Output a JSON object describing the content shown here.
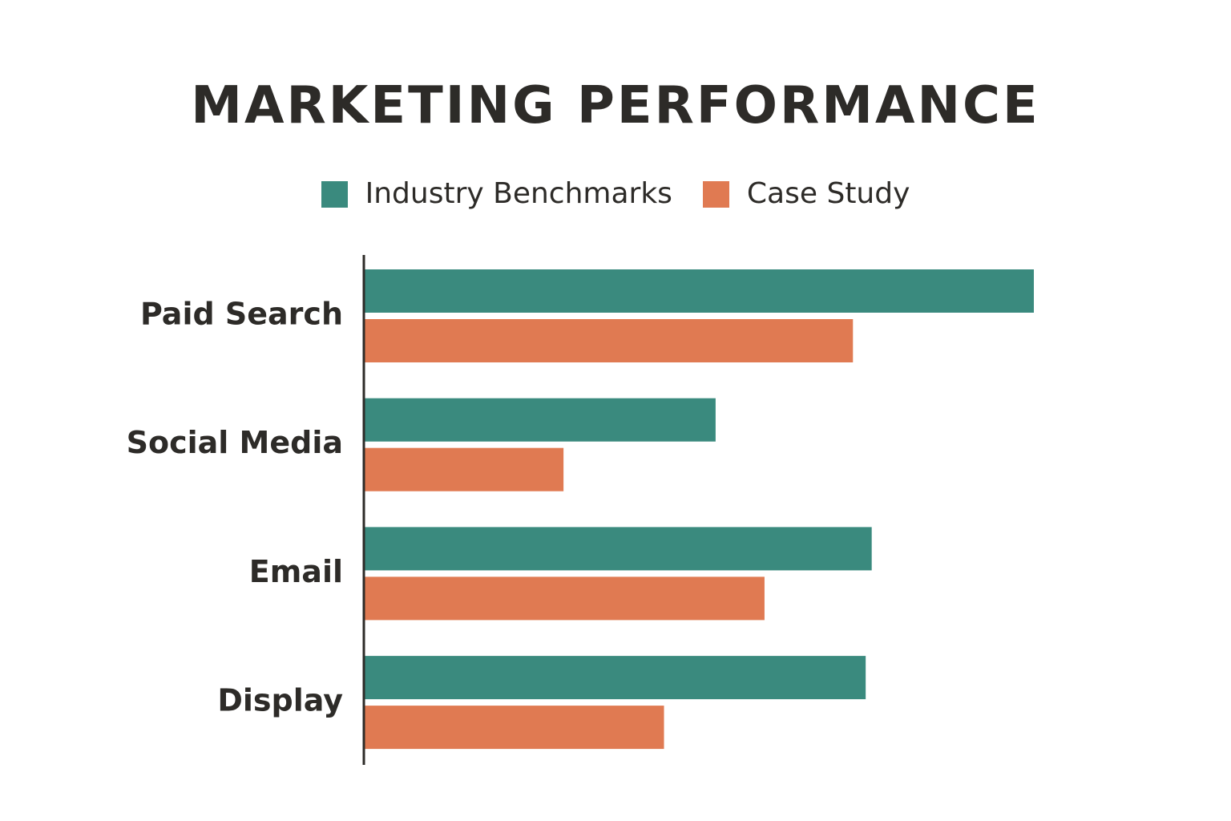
{
  "chart_data": {
    "type": "bar",
    "orientation": "horizontal",
    "title": "MARKETING PERFORMANCE",
    "categories": [
      "Paid Search",
      "Social Media",
      "Email",
      "Display"
    ],
    "series": [
      {
        "name": "Industry Benchmarks",
        "color": "#3a8a7e",
        "values": [
          100,
          52.5,
          75.8,
          74.9
        ]
      },
      {
        "name": "Case Study",
        "color": "#e07a52",
        "values": [
          73,
          29.8,
          59.8,
          44.8
        ]
      }
    ],
    "xlim": [
      0,
      100
    ],
    "legend_position": "top-center",
    "grid": false,
    "axis_color": "#2d2b28"
  }
}
